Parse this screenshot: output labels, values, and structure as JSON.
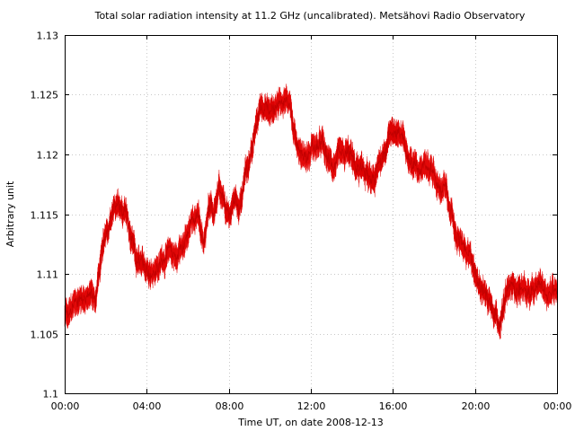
{
  "chart_data": {
    "type": "line",
    "title": "Total solar radiation intensity at 11.2 GHz (uncalibrated). Metsähovi Radio Observatory",
    "xlabel": "Time UT, on date 2008-12-13",
    "ylabel": "Arbitrary unit",
    "xlim": [
      0,
      24
    ],
    "ylim": [
      1.1,
      1.13
    ],
    "x_ticks": [
      0,
      4,
      8,
      12,
      16,
      20,
      24
    ],
    "x_tick_labels": [
      "00:00",
      "04:00",
      "08:00",
      "12:00",
      "16:00",
      "20:00",
      "00:00"
    ],
    "y_ticks": [
      1.1,
      1.105,
      1.11,
      1.115,
      1.12,
      1.125,
      1.13
    ],
    "y_tick_labels": [
      "1.1",
      "1.105",
      "1.11",
      "1.115",
      "1.12",
      "1.125",
      "1.13"
    ],
    "grid": true,
    "line_color": "#ff0000",
    "band_width": 0.0018,
    "series": [
      {
        "x": [
          0,
          0.5,
          1,
          1.5,
          1.75,
          2,
          2.5,
          2.75,
          3,
          3.25,
          3.5,
          3.75,
          4,
          4.5,
          5,
          5.5,
          6,
          6.5,
          6.75,
          7,
          7.25,
          7.5,
          7.75,
          8,
          8.25,
          8.5,
          9,
          9.5,
          10,
          10.5,
          11,
          11.25,
          11.5,
          12,
          12.5,
          13,
          13.5,
          14,
          14.5,
          15,
          15.5,
          16,
          16.25,
          16.5,
          17,
          17.25,
          17.5,
          18,
          18.25,
          18.5,
          18.75,
          19,
          19.5,
          20,
          20.5,
          21,
          21.25,
          21.5,
          22,
          22.5,
          23,
          23.5,
          24
        ],
        "y": [
          1.1065,
          1.1075,
          1.1085,
          1.108,
          1.1105,
          1.1135,
          1.1155,
          1.1155,
          1.115,
          1.1125,
          1.111,
          1.1105,
          1.1105,
          1.1105,
          1.112,
          1.1115,
          1.1135,
          1.115,
          1.112,
          1.1155,
          1.1145,
          1.117,
          1.1155,
          1.1145,
          1.116,
          1.116,
          1.1195,
          1.1235,
          1.124,
          1.1245,
          1.124,
          1.121,
          1.12,
          1.1205,
          1.1205,
          1.1195,
          1.12,
          1.1195,
          1.1185,
          1.1175,
          1.12,
          1.1225,
          1.122,
          1.121,
          1.1195,
          1.119,
          1.1195,
          1.119,
          1.117,
          1.1175,
          1.1155,
          1.1135,
          1.112,
          1.11,
          1.1085,
          1.107,
          1.106,
          1.1085,
          1.109,
          1.109,
          1.108,
          1.1085,
          1.109
        ]
      }
    ]
  }
}
